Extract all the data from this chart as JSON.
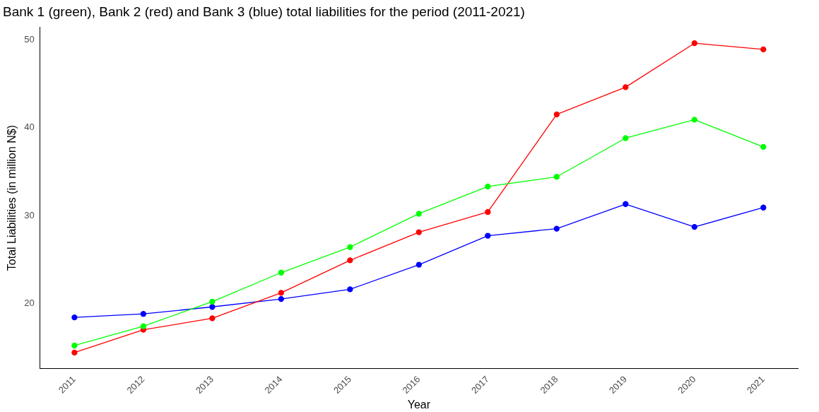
{
  "chart_data": {
    "type": "line",
    "title": "Bank 1 (green), Bank 2 (red) and Bank 3 (blue) total liabilities for the period (2011-2021)",
    "xlabel": "Year",
    "ylabel": "Total Liabilities (in million N$)",
    "categories": [
      "2011",
      "2012",
      "2013",
      "2014",
      "2015",
      "2016",
      "2017",
      "2018",
      "2019",
      "2020",
      "2021"
    ],
    "series": [
      {
        "color": "#00ff00",
        "values": [
          15.2,
          17.4,
          20.2,
          23.5,
          26.4,
          30.2,
          33.3,
          34.4,
          38.8,
          40.9,
          37.8
        ]
      },
      {
        "color": "#ff0000",
        "values": [
          14.4,
          17.0,
          18.3,
          21.2,
          24.9,
          28.1,
          30.4,
          41.5,
          44.6,
          49.6,
          48.9
        ]
      },
      {
        "color": "#0000ff",
        "values": [
          18.4,
          18.8,
          19.6,
          20.5,
          21.6,
          24.4,
          27.7,
          28.5,
          31.3,
          28.7,
          30.9
        ]
      }
    ],
    "ylim": [
      12.6,
      51.4
    ],
    "yticks": [
      20,
      30,
      40,
      50
    ],
    "grid": false,
    "legend": false,
    "marker": "circle",
    "line_style": "solid"
  }
}
